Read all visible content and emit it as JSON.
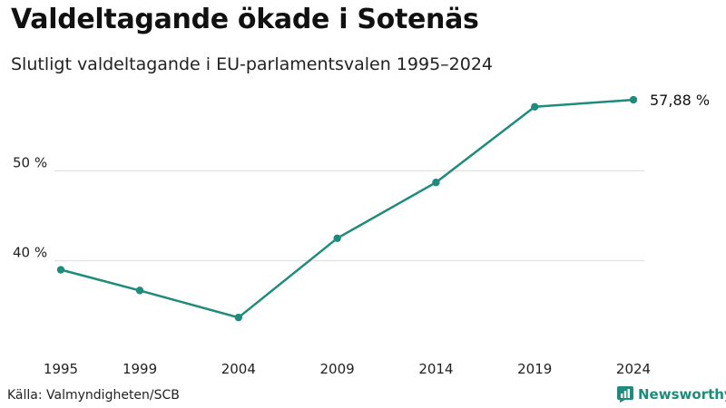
{
  "header": {
    "title": "Valdeltagande ökade i Sotenäs",
    "subtitle": "Slutligt valdeltagande i EU-parlamentsvalen 1995–2024"
  },
  "footer": {
    "source": "Källa: Valmyndigheten/SCB",
    "brand": "Newsworthy",
    "brand_icon": "newsworthy-logo-icon"
  },
  "colors": {
    "line": "#1e8b7c",
    "grid": "#dcdcdc",
    "brand": "#1e8b7c"
  },
  "chart_data": {
    "type": "line",
    "title": "Valdeltagande ökade i Sotenäs",
    "subtitle": "Slutligt valdeltagande i EU-parlamentsvalen 1995–2024",
    "xlabel": "",
    "ylabel": "",
    "categories": [
      "1995",
      "1999",
      "2004",
      "2009",
      "2014",
      "2019",
      "2024"
    ],
    "x": [
      1995,
      1999,
      2004,
      2009,
      2014,
      2019,
      2024
    ],
    "series": [
      {
        "name": "Valdeltagande (%)",
        "values": [
          39.0,
          36.7,
          33.7,
          42.5,
          48.7,
          57.1,
          57.88
        ]
      }
    ],
    "yticks": [
      40,
      50
    ],
    "ytick_labels": [
      "40 %",
      "50 %"
    ],
    "ylim": [
      31.5,
      59.5
    ],
    "end_label": "57,88 %",
    "grid": true,
    "legend": "none"
  }
}
